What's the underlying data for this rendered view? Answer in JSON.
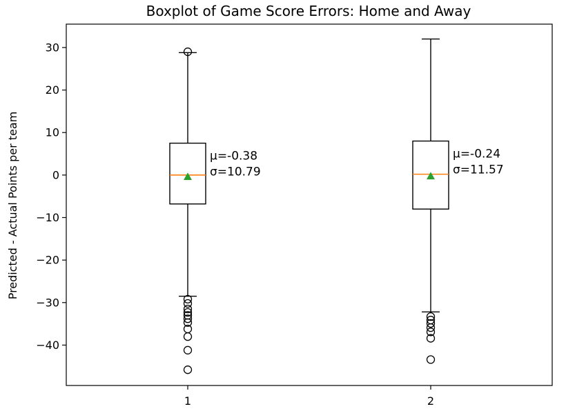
{
  "chart_data": {
    "type": "boxplot",
    "title": "Boxplot of Game Score Errors: Home and Away",
    "ylabel": "Predicted - Actual Points per team",
    "xlabel": "",
    "ylim": [
      -49.5,
      35.5
    ],
    "yticks": [
      30,
      20,
      10,
      0,
      -10,
      -20,
      -30,
      -40
    ],
    "ytick_labels": [
      "30",
      "20",
      "10",
      "0",
      "−10",
      "−20",
      "−30",
      "−40"
    ],
    "categories": [
      "1",
      "2"
    ],
    "grid": false,
    "boxes": [
      {
        "category": "1",
        "whisker_low": -28.5,
        "q1": -6.8,
        "median": 0,
        "q3": 7.5,
        "whisker_high": 28.8,
        "mean": -0.38,
        "fliers": [
          29,
          -29.2,
          -30.2,
          -31.5,
          -32.3,
          -33.0,
          -33.8,
          -34.7,
          -36.2,
          -38.0,
          -41.2,
          -45.8
        ],
        "annotation": [
          "μ=-0.38",
          "σ=10.79"
        ]
      },
      {
        "category": "2",
        "whisker_low": -32.2,
        "q1": -8.0,
        "median": 0.2,
        "q3": 8.0,
        "whisker_high": 32.0,
        "mean": -0.24,
        "fliers": [
          -33.3,
          -34.1,
          -34.9,
          -35.9,
          -36.9,
          -38.4,
          -43.4
        ],
        "annotation": [
          "μ=-0.24",
          "σ=11.57"
        ]
      }
    ],
    "colors": {
      "box": "#000000",
      "median": "#ff7f0e",
      "mean_marker": "#2ca02c",
      "flier": "#000000"
    }
  }
}
